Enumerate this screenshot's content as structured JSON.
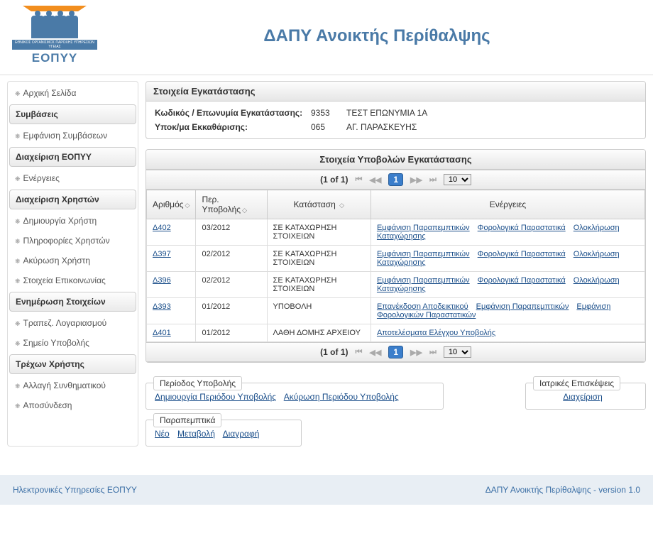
{
  "header": {
    "logo_band": "ΕΘΝΙΚΟΣ ΟΡΓΑΝΙΣΜΟΣ ΠΑΡΟΧΗΣ ΥΠΗΡΕΣΙΩΝ ΥΓΕΙΑΣ",
    "logo_text": "ΕΟΠΥΥ",
    "title": "ΔΑΠΥ Ανοικτής Περίθαλψης"
  },
  "sidebar": {
    "s0_item": "Αρχική Σελίδα",
    "h0": "Συμβάσεις",
    "h0_i0": "Εμφάνιση Συμβάσεων",
    "h1": "Διαχείριση ΕΟΠΥΥ",
    "h1_i0": "Ενέργειες",
    "h2": "Διαχείριση Χρηστών",
    "h2_i0": "Δημιουργία Χρήστη",
    "h2_i1": "Πληροφορίες Χρηστών",
    "h2_i2": "Ακύρωση Χρήστη",
    "h2_i3": "Στοιχεία Επικοινωνίας",
    "h3": "Ενημέρωση Στοιχείων",
    "h3_i0": "Τραπεζ. Λογαριασμού",
    "h3_i1": "Σημείο Υποβολής",
    "h4": "Τρέχων Χρήστης",
    "h4_i0": "Αλλαγή Συνθηματικού",
    "h4_i1": "Αποσύνδεση"
  },
  "install": {
    "title": "Στοιχεία Εγκατάστασης",
    "row1_label": "Κωδικός / Επωνυμία Εγκατάστασης:",
    "row1_code": "9353",
    "row1_val": "ΤΕΣΤ ΕΠΩΝΥΜΙΑ 1Α",
    "row2_label": "Υποκ/μα Εκκαθάρισης:",
    "row2_code": "065",
    "row2_val": "ΑΓ. ΠΑΡΑΣΚΕΥΗΣ"
  },
  "subs": {
    "title": "Στοιχεία Υποβολών Εγκατάστασης",
    "page_text": "(1 of 1)",
    "page_current": "1",
    "page_size": "10",
    "columns": {
      "c0": "Αριθμός",
      "c1": "Περ. Υποβολής",
      "c2": "Κατάσταση",
      "c3": "Ενέργειες"
    },
    "rows": [
      {
        "num": "Δ402",
        "per": "03/2012",
        "stat": "ΣΕ ΚΑΤΑΧΩΡΗΣΗ ΣΤΟΙΧΕΙΩΝ",
        "a0": "Εμφάνιση Παραπεμπτικών",
        "a1": "Φορολογικά Παραστατικά",
        "a2": "Ολοκλήρωση Καταχώρησης"
      },
      {
        "num": "Δ397",
        "per": "02/2012",
        "stat": "ΣΕ ΚΑΤΑΧΩΡΗΣΗ ΣΤΟΙΧΕΙΩΝ",
        "a0": "Εμφάνιση Παραπεμπτικών",
        "a1": "Φορολογικά Παραστατικά",
        "a2": "Ολοκλήρωση Καταχώρησης"
      },
      {
        "num": "Δ396",
        "per": "02/2012",
        "stat": "ΣΕ ΚΑΤΑΧΩΡΗΣΗ ΣΤΟΙΧΕΙΩΝ",
        "a0": "Εμφάνιση Παραπεμπτικών",
        "a1": "Φορολογικά Παραστατικά",
        "a2": "Ολοκλήρωση Καταχώρησης"
      },
      {
        "num": "Δ393",
        "per": "01/2012",
        "stat": "ΥΠΟΒΟΛΗ",
        "a0": "Επανέκδοση Αποδεικτικού",
        "a1": "Εμφάνιση Παραπεμπτικών",
        "a2": "Εμφάνιση Φορολογικών Παραστατικών"
      },
      {
        "num": "Δ401",
        "per": "01/2012",
        "stat": "ΛΑΘΗ ΔΟΜΗΣ ΑΡΧΕΙΟΥ",
        "a0": "Αποτελέσματα Ελέγχου Υποβολής"
      }
    ]
  },
  "fs_period": {
    "legend": "Περίοδος Υποβολής",
    "l0": "Δημιουργία Περιόδου Υποβολής",
    "l1": "Ακύρωση Περιόδου Υποβολής"
  },
  "fs_visits": {
    "legend": "Ιατρικές Επισκέψεις",
    "l0": "Διαχείριση"
  },
  "fs_ref": {
    "legend": "Παραπεμπτικά",
    "l0": "Νέο",
    "l1": "Μεταβολή",
    "l2": "Διαγραφή"
  },
  "footer": {
    "left": "Ηλεκτρονικές Υπηρεσίες ΕΟΠΥΥ",
    "right": "ΔΑΠΥ Ανοικτής Περίθαλψης - version 1.0"
  }
}
